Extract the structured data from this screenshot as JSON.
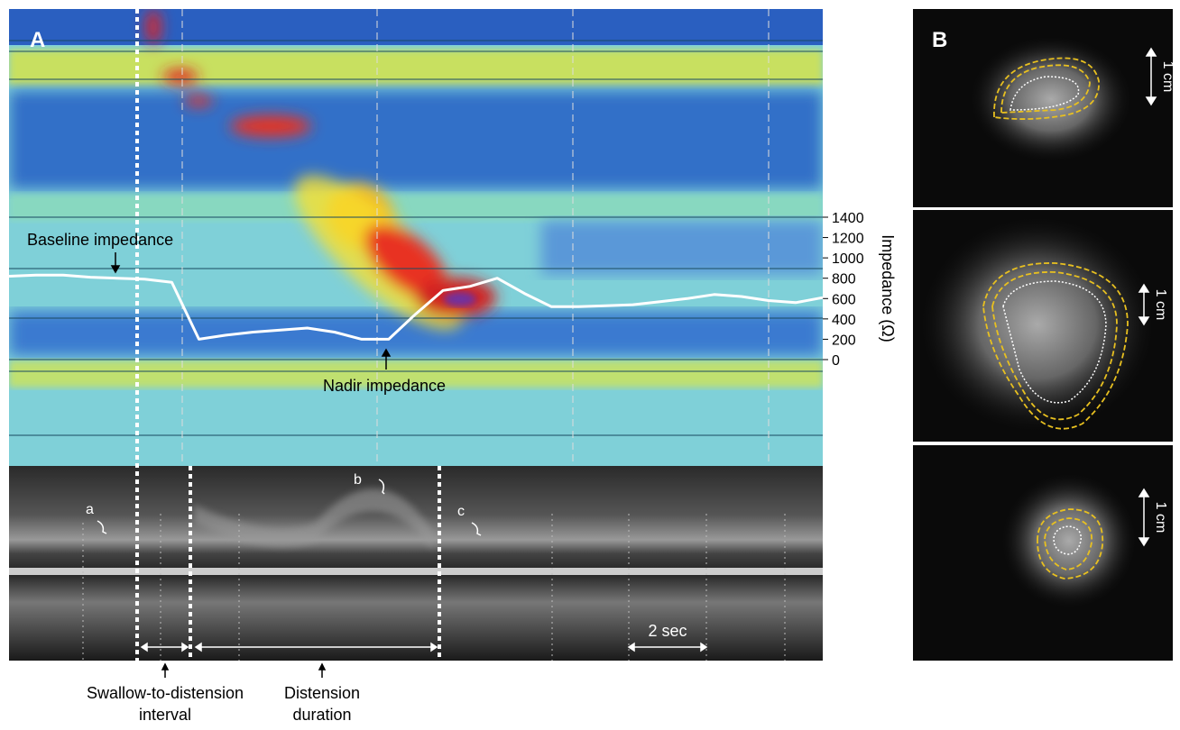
{
  "panel_a": {
    "label": "A",
    "impedance": {
      "axis_label": "Impedance (Ω)",
      "ylim": [
        0,
        1400
      ],
      "yticks": [
        0,
        200,
        400,
        600,
        800,
        1000,
        1200,
        1400
      ],
      "trace": [
        820,
        830,
        830,
        810,
        800,
        790,
        760,
        200,
        240,
        270,
        290,
        310,
        270,
        200,
        200,
        450,
        680,
        720,
        800,
        650,
        520,
        520,
        530,
        540,
        570,
        600,
        640,
        620,
        580,
        560,
        610
      ]
    },
    "annotations": {
      "baseline": "Baseline impedance",
      "nadir": "Nadir impedance",
      "a": "a",
      "b": "b",
      "c": "c",
      "scale": "2 sec"
    },
    "intervals": {
      "swallow_to_distension": [
        "Swallow-to-distension",
        "interval"
      ],
      "distension_duration": [
        "Distension",
        "duration"
      ]
    }
  },
  "panel_b": {
    "label": "B",
    "scale_labels": [
      "1 cm",
      "1 cm",
      "1 cm"
    ]
  }
}
